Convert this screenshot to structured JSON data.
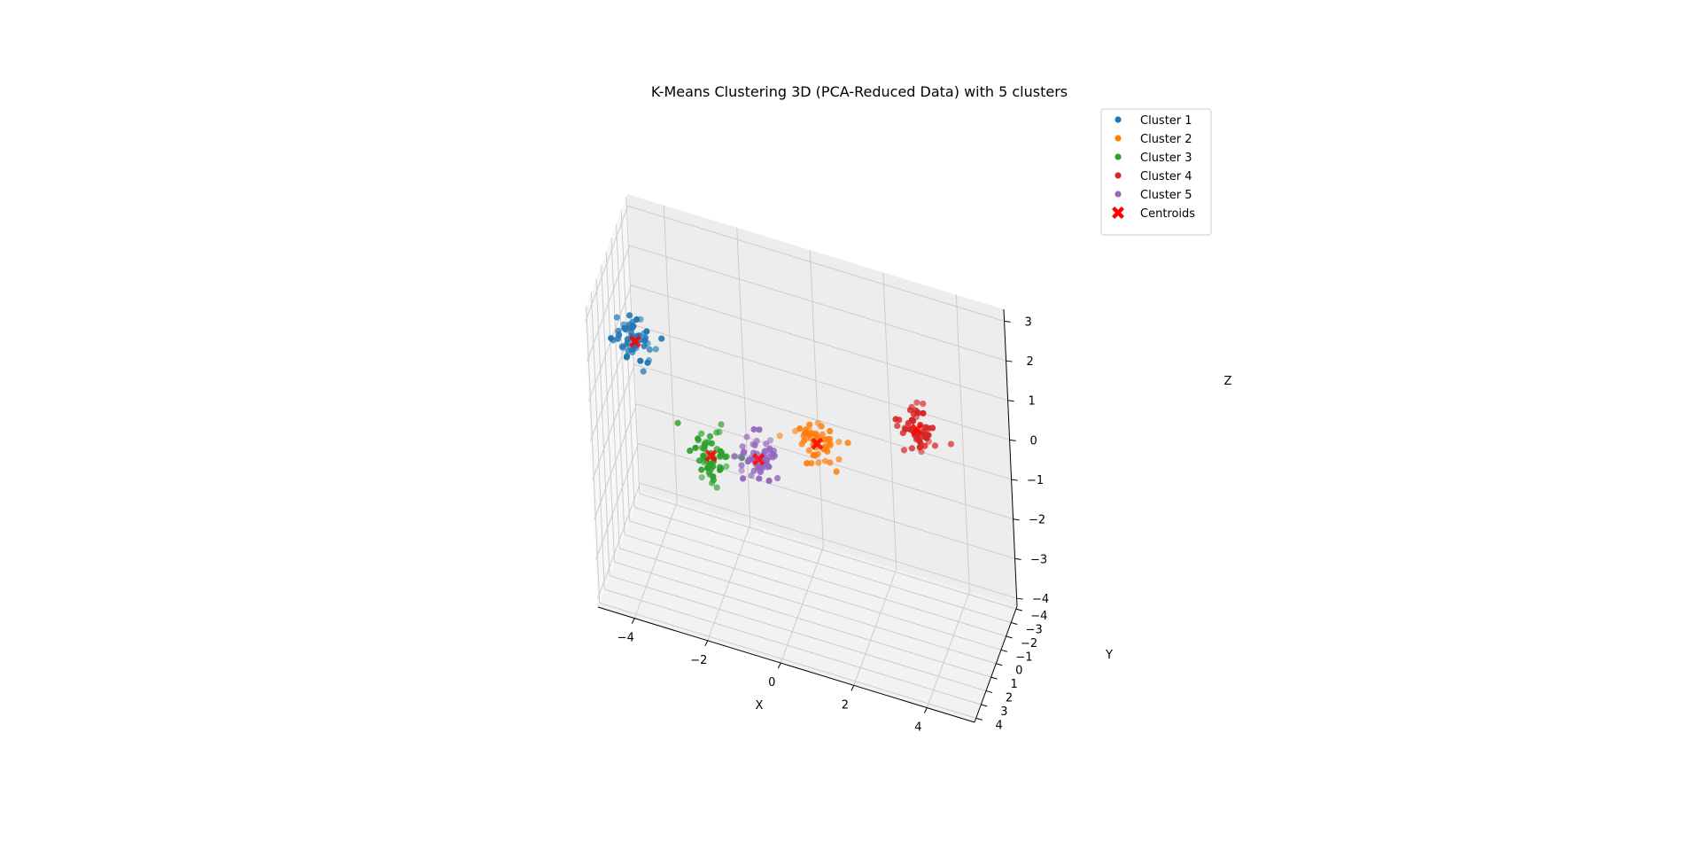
{
  "chart_data": {
    "type": "scatter",
    "projection": "3d",
    "title": "K-Means Clustering 3D (PCA-Reduced Data) with 5 clusters",
    "xlabel": "X",
    "ylabel": "Y",
    "zlabel": "Z",
    "xlim": [
      -5,
      5.3
    ],
    "ylim": [
      -4.2,
      4.3
    ],
    "zlim": [
      -4.2,
      3.3
    ],
    "xticks": [
      -4,
      -2,
      0,
      2,
      4
    ],
    "yticks": [
      -4,
      -3,
      -2,
      -1,
      0,
      1,
      2,
      3,
      4
    ],
    "zticks": [
      -4,
      -3,
      -2,
      -1,
      0,
      1,
      2,
      3
    ],
    "xtick_labels": [
      "−4",
      "−2",
      "0",
      "2",
      "4"
    ],
    "ytick_labels": [
      "−4",
      "−3",
      "−2",
      "−1",
      "0",
      "1",
      "2",
      "3",
      "4"
    ],
    "ztick_labels": [
      "−4",
      "−3",
      "−2",
      "−1",
      "0",
      "1",
      "2",
      "3"
    ],
    "grid": true,
    "legend_position": "top-right",
    "series": [
      {
        "name": "Cluster 1",
        "color": "#1f77b4",
        "center": [
          -4.0,
          2.0,
          2.0
        ],
        "spread": 0.28,
        "n": 55
      },
      {
        "name": "Cluster 2",
        "color": "#ff7f0e",
        "center": [
          1.0,
          2.5,
          1.0
        ],
        "spread": 0.28,
        "n": 55
      },
      {
        "name": "Cluster 3",
        "color": "#2ca02c",
        "center": [
          -2.5,
          -1.0,
          -1.5
        ],
        "spread": 0.28,
        "n": 55
      },
      {
        "name": "Cluster 4",
        "color": "#d62728",
        "center": [
          3.0,
          -2.5,
          0.2
        ],
        "spread": 0.28,
        "n": 55
      },
      {
        "name": "Cluster 5",
        "color": "#9467bd",
        "center": [
          -1.5,
          -3.0,
          -2.0
        ],
        "spread": 0.28,
        "n": 55
      }
    ],
    "centroids": {
      "name": "Centroids",
      "color": "#ff0000",
      "marker": "X",
      "points": [
        [
          -4.0,
          2.0,
          2.0
        ],
        [
          1.0,
          2.5,
          1.0
        ],
        [
          -2.5,
          -1.0,
          -1.5
        ],
        [
          3.0,
          -2.5,
          0.2
        ],
        [
          -1.5,
          -3.0,
          -2.0
        ]
      ]
    }
  }
}
